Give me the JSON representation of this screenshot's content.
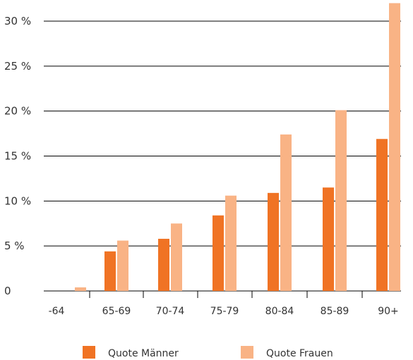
{
  "chart_data": {
    "type": "bar",
    "categories": [
      "-64",
      "65-69",
      "70-74",
      "75-79",
      "80-84",
      "85-89",
      "90+"
    ],
    "series": [
      {
        "name": "Quote Männer",
        "color": "#f07324",
        "values": [
          0,
          4.4,
          5.8,
          8.4,
          10.9,
          11.5,
          16.9
        ]
      },
      {
        "name": "Quote Frauen",
        "color": "#f9b385",
        "values": [
          0.4,
          5.6,
          7.5,
          10.6,
          17.4,
          20.1,
          32.0
        ]
      }
    ],
    "ylim": [
      0,
      30
    ],
    "y_ticks": [
      0,
      5,
      10,
      15,
      20,
      25,
      30
    ],
    "y_tick_labels": [
      "0",
      "5 %",
      "10 %",
      "15 %",
      "20 %",
      "25 %",
      "30 %"
    ],
    "grid": true,
    "legend_position": "bottom"
  }
}
